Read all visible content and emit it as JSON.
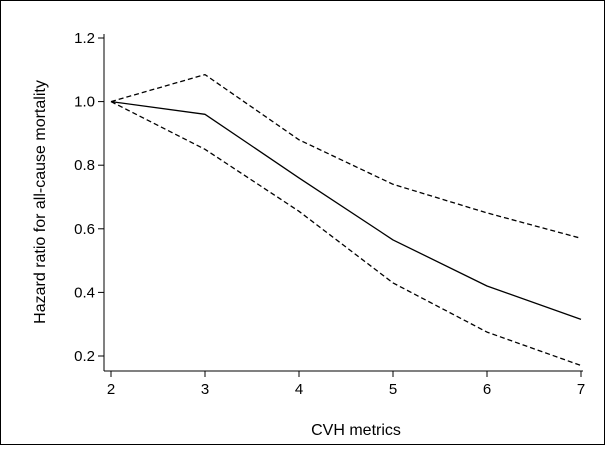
{
  "chart_data": {
    "type": "line",
    "title": "",
    "xlabel": "CVH metrics",
    "ylabel": "Hazard ratio for all-cause mortality",
    "x": [
      2,
      3,
      4,
      5,
      6,
      7
    ],
    "xlim": [
      2,
      7
    ],
    "ylim": [
      0.15,
      1.22
    ],
    "xticks": [
      "2",
      "3",
      "4",
      "5",
      "6",
      "7"
    ],
    "yticks": [
      "0.2",
      "0.4",
      "0.6",
      "0.8",
      "1.0",
      "1.2"
    ],
    "grid": false,
    "legend": "none",
    "series": [
      {
        "style": "solid",
        "values": [
          1.0,
          0.96,
          0.76,
          0.565,
          0.42,
          0.315
        ]
      },
      {
        "style": "dashed",
        "values": [
          1.0,
          1.085,
          0.88,
          0.74,
          0.65,
          0.57
        ]
      },
      {
        "style": "dashed",
        "values": [
          1.0,
          0.85,
          0.655,
          0.43,
          0.275,
          0.17
        ]
      }
    ]
  }
}
